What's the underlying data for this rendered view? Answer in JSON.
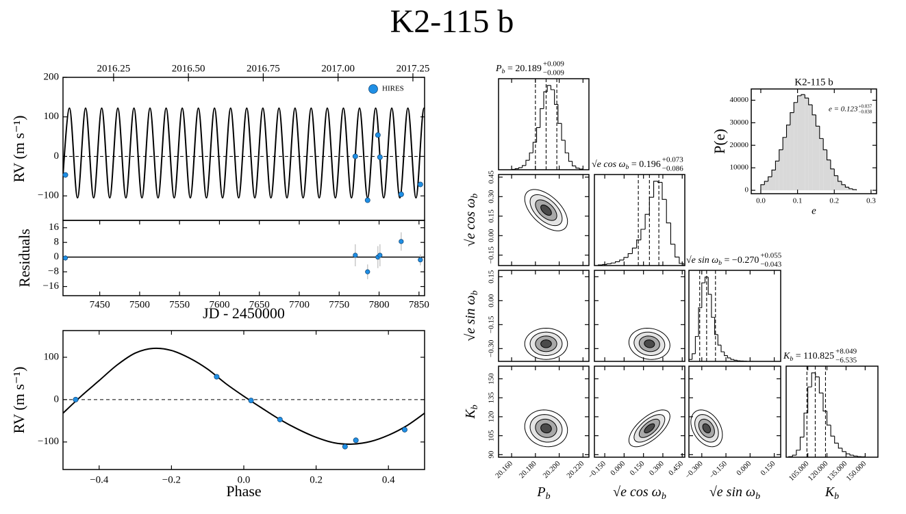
{
  "chart_data": [
    {
      "type": "scatter",
      "title": "K2-115 b",
      "ylabel": "RV (m s⁻¹)",
      "xlim": [
        7404,
        7857
      ],
      "ylim": [
        -162,
        200
      ],
      "yticks": [
        {
          "value": -100,
          "label": "−100"
        },
        0,
        100,
        200
      ],
      "x2lim": [
        2016.081,
        2017.289
      ],
      "x2ticks": [
        2016.25,
        {
          "value": 2016.5,
          "label": "2016.50"
        },
        2016.75,
        {
          "value": 2017,
          "label": "2017.00"
        },
        2017.25
      ],
      "legend": "upper right",
      "reference_line": 0,
      "series": [
        {
          "name": "HIRES",
          "color": "#1f8fe5",
          "x": [
            7407.0,
            7770.2,
            7785.6,
            7798.5,
            7801.1,
            7827.7,
            7851.7
          ],
          "values": [
            -47,
            0,
            -111,
            54,
            -2,
            -96,
            -71
          ]
        }
      ],
      "model": {
        "color": "#000000",
        "x": [
          7402.0,
          7412.1,
          7422.2,
          7432.3,
          7442.4,
          7452.5,
          7462.6,
          7472.7,
          7482.8,
          7492.9,
          7502.9,
          7513.0,
          7523.1,
          7533.2,
          7543.3,
          7553.4,
          7563.5,
          7573.6,
          7583.7,
          7593.8,
          7603.9,
          7614.0,
          7624.1,
          7634.2,
          7644.3,
          7654.4,
          7664.5,
          7674.6,
          7684.6,
          7694.7,
          7704.8,
          7714.9,
          7725.0,
          7735.1,
          7745.2,
          7755.3,
          7765.4,
          7775.5,
          7785.6,
          7795.7,
          7805.8,
          7815.9,
          7826.0,
          7836.1,
          7846.2,
          7856.3,
          7866.4
        ],
        "values": [
          -105,
          122,
          -105,
          122,
          -105,
          122,
          -105,
          122,
          -105,
          122,
          -105,
          122,
          -105,
          122,
          -105,
          122,
          -105,
          122,
          -105,
          122,
          -105,
          122,
          -105,
          122,
          -105,
          122,
          -105,
          122,
          -105,
          122,
          -105,
          122,
          -105,
          122,
          -105,
          122,
          -105,
          122,
          -105,
          122,
          -105,
          122,
          -105,
          122,
          -105,
          122,
          -105
        ]
      }
    },
    {
      "type": "errorbar",
      "ylabel": "Residuals",
      "xlabel": "JD - 2450000",
      "xlim": [
        7404,
        7857
      ],
      "ylim": [
        -21,
        20
      ],
      "xticks": [
        7450,
        7500,
        7550,
        7600,
        7650,
        7700,
        7750,
        7800,
        7850
      ],
      "yticks": [
        {
          "value": -16,
          "label": "−16"
        },
        {
          "value": -8,
          "label": "−8"
        },
        0,
        8,
        16
      ],
      "reference_line": 0,
      "color": "#1f8fe5",
      "x": [
        7407.0,
        7770.2,
        7785.6,
        7798.5,
        7801.1,
        7827.7,
        7851.7
      ],
      "values": [
        -0.5,
        1,
        -8,
        0,
        1,
        8.5,
        -1.5
      ],
      "errors": [
        1.5,
        6,
        4,
        6,
        6,
        5,
        3
      ]
    },
    {
      "type": "scatter",
      "ylabel": "RV (m s⁻¹)",
      "xlabel": "Phase",
      "xlim": [
        -0.5,
        0.5
      ],
      "ylim": [
        -165,
        163
      ],
      "xticks": [
        {
          "value": -0.4,
          "label": "−0.4"
        },
        {
          "value": -0.2,
          "label": "−0.2"
        },
        {
          "value": 0,
          "label": "0.0"
        },
        0.2,
        0.4
      ],
      "yticks": [
        {
          "value": -100,
          "label": "−100"
        },
        0,
        100
      ],
      "reference_line": 0,
      "series": [
        {
          "name": "HIRES",
          "color": "#1f8fe5",
          "x": [
            -0.465,
            -0.075,
            0.02,
            0.1,
            0.28,
            0.31,
            0.445
          ],
          "values": [
            0,
            54,
            -2,
            -47,
            -111,
            -96,
            -71
          ]
        }
      ],
      "model": {
        "color": "#000000",
        "x": [
          -0.5,
          -0.45,
          -0.4,
          -0.35,
          -0.3,
          -0.25,
          -0.2,
          -0.15,
          -0.1,
          -0.05,
          0,
          0.05,
          0.1,
          0.15,
          0.2,
          0.25,
          0.3,
          0.35,
          0.4,
          0.45,
          0.5
        ],
        "values": [
          -32,
          8,
          45,
          82,
          110,
          121,
          116,
          98,
          72,
          38,
          8,
          -20,
          -47,
          -70,
          -89,
          -102,
          -105,
          -99,
          -84,
          -62,
          -32
        ]
      }
    },
    {
      "type": "corner",
      "params": [
        {
          "label": {
            "main": "P",
            "sub": "b"
          },
          "title": {
            "eq": " = 20.189",
            "plus": "+0.009",
            "minus": "−0.009"
          },
          "lim": [
            20.149,
            20.225
          ],
          "quantiles": [
            20.18,
            20.189,
            20.198
          ],
          "ticks": [
            {
              "value": 20.16,
              "label": "20.160"
            },
            {
              "value": 20.18,
              "label": "20.180"
            },
            {
              "value": 20.2,
              "label": "20.200"
            },
            {
              "value": 20.22,
              "label": "20.220"
            }
          ],
          "bins": [
            20.16,
            20.163,
            20.166,
            20.169,
            20.172,
            20.175,
            20.178,
            20.181,
            20.184,
            20.187,
            20.19,
            20.193,
            20.196,
            20.199,
            20.202,
            20.205,
            20.208,
            20.211,
            20.214,
            20.217,
            20.22
          ],
          "counts": [
            2,
            5,
            10,
            20,
            45,
            80,
            130,
            200,
            290,
            370,
            400,
            380,
            310,
            220,
            140,
            80,
            40,
            18,
            8,
            3
          ]
        },
        {
          "label": {
            "main": "√e cos ω",
            "sub": "b"
          },
          "title": {
            "eq": " = 0.196",
            "plus": "+0.073",
            "minus": "−0.086"
          },
          "lim": [
            -0.23,
            0.47
          ],
          "quantiles": [
            0.11,
            0.196,
            0.269
          ],
          "ticks": [
            {
              "value": -0.15,
              "label": "−0.150"
            },
            {
              "value": 0,
              "label": "0.000"
            },
            {
              "value": 0.15,
              "label": "0.150"
            },
            {
              "value": 0.3,
              "label": "0.300"
            },
            {
              "value": 0.45,
              "label": "0.450"
            }
          ],
          "yticks": [
            0.45,
            {
              "value": 0.3,
              "label": "0.30"
            },
            0.15,
            {
              "value": 0,
              "label": "0.00"
            },
            {
              "value": -0.15,
              "label": "−0.15"
            }
          ],
          "bins": [
            -0.2,
            -0.167,
            -0.134,
            -0.101,
            -0.068,
            -0.035,
            -0.002,
            0.031,
            0.064,
            0.097,
            0.13,
            0.163,
            0.196,
            0.229,
            0.262,
            0.295,
            0.328,
            0.361,
            0.394,
            0.427,
            0.46
          ],
          "counts": [
            3,
            5,
            8,
            12,
            18,
            26,
            38,
            56,
            82,
            120,
            170,
            240,
            320,
            395,
            390,
            310,
            200,
            100,
            40,
            10
          ]
        },
        {
          "label": {
            "main": "√e sin ω",
            "sub": "b"
          },
          "title": {
            "eq": " = −0.270",
            "plus": "+0.055",
            "minus": "−0.043"
          },
          "lim": [
            -0.38,
            0.19
          ],
          "quantiles": [
            -0.313,
            -0.27,
            -0.215
          ],
          "ticks": [
            {
              "value": -0.3,
              "label": "−0.300"
            },
            {
              "value": -0.15,
              "label": "−0.150"
            },
            {
              "value": 0,
              "label": "0.000"
            },
            {
              "value": 0.15,
              "label": "0.150"
            }
          ],
          "yticks": [
            0.15,
            {
              "value": 0,
              "label": "0.00"
            },
            {
              "value": -0.15,
              "label": "−0.15"
            },
            {
              "value": -0.3,
              "label": "−0.30"
            }
          ],
          "bins": [
            -0.38,
            -0.36,
            -0.34,
            -0.32,
            -0.3,
            -0.28,
            -0.26,
            -0.24,
            -0.22,
            -0.2,
            -0.18,
            -0.16,
            -0.14,
            -0.12,
            -0.1,
            -0.08,
            -0.06,
            -0.04,
            -0.02,
            0,
            0.02
          ],
          "counts": [
            10,
            40,
            130,
            280,
            410,
            440,
            350,
            230,
            140,
            85,
            50,
            30,
            18,
            10,
            6,
            3,
            2,
            1,
            0,
            0
          ]
        },
        {
          "label": {
            "main": "K",
            "sub": "b"
          },
          "title": {
            "eq": " = 110.825",
            "plus": "+8.049",
            "minus": "−6.535"
          },
          "lim": [
            88,
            160
          ],
          "quantiles": [
            104.29,
            110.825,
            118.874
          ],
          "ticks": [
            {
              "value": 105,
              "label": "105.000"
            },
            {
              "value": 120,
              "label": "120.000"
            },
            {
              "value": 135,
              "label": "135.000"
            },
            {
              "value": 150,
              "label": "150.000"
            }
          ],
          "yticks": [
            90,
            105,
            120,
            135,
            150
          ],
          "bins": [
            90,
            93,
            96,
            99,
            102,
            105,
            108,
            111,
            114,
            117,
            120,
            123,
            126,
            129,
            132,
            135,
            138,
            141,
            144,
            147,
            150
          ],
          "counts": [
            3,
            10,
            35,
            100,
            220,
            350,
            420,
            400,
            320,
            230,
            160,
            105,
            70,
            45,
            28,
            17,
            10,
            6,
            3,
            2
          ]
        }
      ],
      "panels": [
        {
          "row": 1,
          "col": 0,
          "rho": -0.55
        },
        {
          "row": 2,
          "col": 0,
          "rho": 0
        },
        {
          "row": 2,
          "col": 1,
          "rho": -0.1
        },
        {
          "row": 3,
          "col": 0,
          "rho": -0.1
        },
        {
          "row": 3,
          "col": 1,
          "rho": 0.65
        },
        {
          "row": 3,
          "col": 2,
          "rho": -0.35
        }
      ]
    },
    {
      "type": "histogram",
      "title": "K2-115 b",
      "xlabel": "e",
      "ylabel": "P(e)",
      "color": "#d9d9d9",
      "annotation": {
        "text": "e = 0.123",
        "plus": "+0.037",
        "minus": "−0.038"
      },
      "xlim": [
        -0.026,
        0.315
      ],
      "ylim": [
        -1500,
        45000
      ],
      "xticks": [
        {
          "value": 0,
          "label": "0.0"
        },
        0.1,
        0.2,
        0.3
      ],
      "yticks": [
        0,
        10000,
        20000,
        30000,
        40000
      ],
      "bins": [
        0,
        0.01,
        0.02,
        0.03,
        0.04,
        0.05,
        0.06,
        0.07,
        0.08,
        0.09,
        0.1,
        0.11,
        0.12,
        0.13,
        0.14,
        0.15,
        0.16,
        0.17,
        0.18,
        0.19,
        0.2,
        0.21,
        0.22,
        0.23,
        0.24,
        0.25,
        0.26
      ],
      "counts": [
        2500,
        4000,
        6000,
        9000,
        13000,
        18000,
        23500,
        29000,
        34500,
        39000,
        42000,
        42500,
        41000,
        38000,
        33500,
        28500,
        23000,
        18000,
        13500,
        9500,
        6500,
        4000,
        2500,
        1400,
        700,
        300
      ]
    }
  ]
}
